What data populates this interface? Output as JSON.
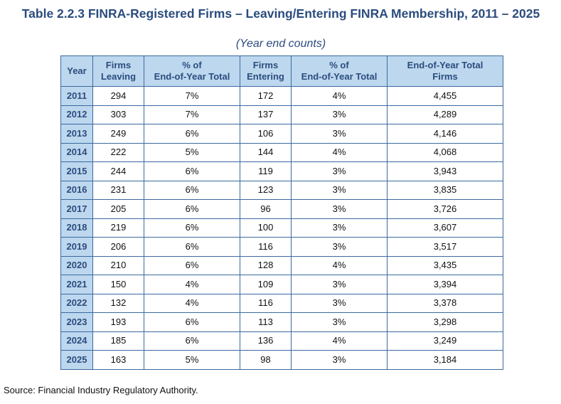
{
  "title": "Table 2.2.3 FINRA-Registered Firms – Leaving/Entering FINRA Membership, 2011 – 2025",
  "subtitle": "(Year end counts)",
  "columns": [
    {
      "line1": "Year",
      "line2": ""
    },
    {
      "line1": "Firms",
      "line2": "Leaving"
    },
    {
      "line1": "% of",
      "line2": "End-of-Year Total"
    },
    {
      "line1": "Firms",
      "line2": "Entering"
    },
    {
      "line1": "% of",
      "line2": "End-of-Year Total"
    },
    {
      "line1": "End-of-Year Total",
      "line2": "Firms"
    }
  ],
  "rows": [
    [
      "2011",
      "294",
      "7%",
      "172",
      "4%",
      "4,455"
    ],
    [
      "2012",
      "303",
      "7%",
      "137",
      "3%",
      "4,289"
    ],
    [
      "2013",
      "249",
      "6%",
      "106",
      "3%",
      "4,146"
    ],
    [
      "2014",
      "222",
      "5%",
      "144",
      "4%",
      "4,068"
    ],
    [
      "2015",
      "244",
      "6%",
      "119",
      "3%",
      "3,943"
    ],
    [
      "2016",
      "231",
      "6%",
      "123",
      "3%",
      "3,835"
    ],
    [
      "2017",
      "205",
      "6%",
      "96",
      "3%",
      "3,726"
    ],
    [
      "2018",
      "219",
      "6%",
      "100",
      "3%",
      "3,607"
    ],
    [
      "2019",
      "206",
      "6%",
      "116",
      "3%",
      "3,517"
    ],
    [
      "2020",
      "210",
      "6%",
      "128",
      "4%",
      "3,435"
    ],
    [
      "2021",
      "150",
      "4%",
      "109",
      "3%",
      "3,394"
    ],
    [
      "2022",
      "132",
      "4%",
      "116",
      "3%",
      "3,378"
    ],
    [
      "2023",
      "193",
      "6%",
      "113",
      "3%",
      "3,298"
    ],
    [
      "2024",
      "185",
      "6%",
      "136",
      "4%",
      "3,249"
    ],
    [
      "2025",
      "163",
      "5%",
      "98",
      "3%",
      "3,184"
    ]
  ],
  "source": "Source: Financial Industry Regulatory Authority.",
  "colors": {
    "header_bg": "#bdd7ee",
    "title": "#2b4c7e",
    "border": "#3a6aa0"
  }
}
